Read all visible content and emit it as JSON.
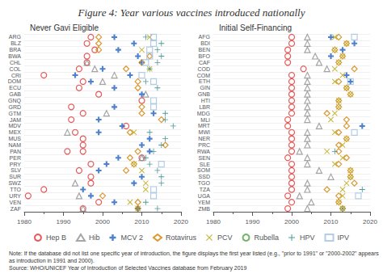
{
  "chart_data": [
    {
      "type": "scatter",
      "title": "Figure 4: Year various vaccines introduced nationally",
      "subtitle": "Never Gavi Eligible",
      "note": "Note: If the database did not list one specific year of introduction, the figure displays the first year listed (e.g., \"prior to 1991\" or \"2000-2002\" appears as introduction in 1991 and 2000).\nSource: WHO/UNICEF Year of Introduction of Selected Vaccines database from February 2019",
      "legend": "bottom",
      "grid": true,
      "xlim": [
        1980,
        2020
      ],
      "xticks": [
        1980,
        1990,
        2000,
        2010,
        2020
      ],
      "categories": [
        "ARG",
        "BLZ",
        "BRA",
        "BWA",
        "CHL",
        "COL",
        "CRI",
        "DOM",
        "ECU",
        "GAB",
        "GNQ",
        "GRD",
        "GTM",
        "JAM",
        "MDV",
        "MEX",
        "MUS",
        "NAM",
        "PAN",
        "PER",
        "PRY",
        "SLV",
        "SUR",
        "SWZ",
        "TTO",
        "URY",
        "VEN",
        "ZAF"
      ],
      "series": [
        {
          "name": "Hep B",
          "color": "#e03030",
          "marker": "circle",
          "x": [
            1997,
            1996,
            1998,
            1996,
            1996,
            1994,
            1985,
            1995,
            1994,
            1999,
            2010,
            1992,
            1995,
            1992,
            2006,
            1993,
            1995,
            1995,
            1991,
            1995,
            2010,
            1997,
            1994,
            1997,
            1997,
            1985,
            1981,
            1999,
            1995
          ],
          "y": [
            "ARG",
            "BLZ",
            "BRA",
            "BWA",
            "CHL",
            "COL",
            "CRI",
            "DOM",
            "ECU",
            "GAB",
            "GNQ",
            "GRD",
            "GTM",
            "JAM",
            "MDV",
            "MEX",
            "MUS",
            "NAM",
            "PAN",
            "PAN",
            "PER",
            "PRY",
            "SLV",
            "SUR",
            "SWZ",
            "TTO",
            "URY",
            "VEN",
            "ZAF"
          ]
        },
        {
          "name": "Hib",
          "color": "#909090",
          "marker": "triangle",
          "x": [
            1996,
            1998,
            2003,
            2000,
            2011,
            2001,
            1991,
            2010,
            1993,
            1994,
            1995
          ],
          "y": [
            "CHL",
            "COL",
            "CRI",
            "DOM",
            "GAB",
            "GTM",
            "MEX",
            "PER",
            "SWZ",
            "URY",
            "ZAF"
          ]
        },
        {
          "name": "MCV 2",
          "color": "#2060c0",
          "marker": "plus_filled",
          "x": [
            2003,
            2008,
            2004,
            2009,
            2010,
            2000,
            1993,
            2007,
            1997,
            2003,
            2010,
            2003,
            2013,
            1999,
            2005,
            1999,
            2012,
            2010,
            2012,
            2004,
            2001,
            1999,
            2010,
            2008,
            1995,
            1997,
            2003,
            2009
          ],
          "y": [
            "ARG",
            "BLZ",
            "BRA",
            "BWA",
            "CHL",
            "COL",
            "CRI",
            "CRI",
            "DOM",
            "ECU",
            "GAB",
            "GRD",
            "GTM",
            "JAM",
            "MDV",
            "MEX",
            "MUS",
            "NAM",
            "PAN",
            "PER",
            "PRY",
            "SLV",
            "SUR",
            "SWZ",
            "TTO",
            "URY",
            "VEN",
            "ZAF"
          ]
        },
        {
          "name": "Rotavirus",
          "color": "#d08000",
          "marker": "diamond",
          "x": [
            1999,
            1999,
            1999,
            2012,
            2010,
            2006,
            2009,
            2009,
            2010,
            2010,
            2015,
            2007,
            2016,
            2009,
            2007,
            2008,
            2006,
            2000,
            2009,
            2009
          ],
          "y": [
            "ARG",
            "BLZ",
            "BRA",
            "BWA",
            "CHL",
            "COL",
            "DOM",
            "ECU",
            "GRD",
            "GTM",
            "JAM",
            "MEX",
            "NAM",
            "PAN",
            "PER",
            "PRY",
            "SLV",
            "URY",
            "VEN",
            "ZAF"
          ]
        },
        {
          "name": "PCV",
          "color": "#b8a000",
          "marker": "x",
          "x": [
            2012,
            2010,
            2012,
            2008,
            2008,
            2010,
            2011,
            2011,
            2007,
            2009
          ],
          "y": [
            "ARG",
            "BRA",
            "COL",
            "MEX",
            "PRY",
            "SLV",
            "SWZ",
            "TTO",
            "VEN",
            "ZAF"
          ]
        },
        {
          "name": "Rubella",
          "color": "#50a040",
          "marker": "circle",
          "x": [],
          "y": []
        },
        {
          "name": "HPV",
          "color": "#208080",
          "marker": "plus",
          "x": [
            2011,
            2015,
            2014,
            2015,
            2014,
            2012,
            2011,
            2014,
            2016,
            2016,
            2018,
            2012,
            2016,
            2015,
            2013,
            2011,
            2012,
            2014,
            2015,
            2015,
            2011,
            2014
          ],
          "y": [
            "ARG",
            "BLZ",
            "BRA",
            "BWA",
            "CHL",
            "COL",
            "DOM",
            "ECU",
            "GTM",
            "JAM",
            "MDV",
            "MEX",
            "MUS",
            "NAM",
            "PAN",
            "PER",
            "PRY",
            "SLV",
            "SUR",
            "SWZ",
            "VEN",
            "ZAF"
          ]
        },
        {
          "name": "IPV",
          "color": "#a0c0e0",
          "marker": "square",
          "x": [
            2013,
            2013,
            2012,
            2012,
            2011,
            2010,
            2013,
            2013,
            2013,
            2015,
            2013,
            2013
          ],
          "y": [
            "ARG",
            "BLZ",
            "BRA",
            "BWA",
            "CHL",
            "CRI",
            "DOM",
            "GNQ",
            "GRD",
            "PRY",
            "TTO",
            "URY"
          ]
        }
      ]
    },
    {
      "type": "scatter",
      "subtitle": "Initial Self-Financing",
      "grid": true,
      "xlim": [
        1980,
        2020
      ],
      "xticks": [
        1980,
        1990,
        2000,
        2010,
        2020
      ],
      "categories": [
        "AFG",
        "BDI",
        "BEN",
        "BFO",
        "CAF",
        "COD",
        "COM",
        "ETH",
        "GIN",
        "GNB",
        "HTI",
        "LBR",
        "MDG",
        "MLI",
        "MRT",
        "MWI",
        "NER",
        "PRC",
        "RWA",
        "SEN",
        "SLE",
        "SOM",
        "SSD",
        "TGO",
        "TZA",
        "UGA",
        "YEM",
        "ZMB"
      ],
      "series": [
        {
          "name": "Hep B",
          "color": "#e03030",
          "marker": "circle",
          "x": [
            2000,
            2000,
            1999,
            1999,
            1999,
            2003,
            2000,
            2000,
            2000,
            2000,
            2000,
            2000,
            2000,
            1999,
            1999,
            2000,
            2000,
            2000,
            2000,
            1999,
            2000,
            2000,
            2000,
            2000,
            2000,
            1999,
            2000,
            1999
          ],
          "y": [
            "AFG",
            "BDI",
            "BEN",
            "BFO",
            "CAF",
            "COD",
            "COM",
            "ETH",
            "GIN",
            "GNB",
            "HTI",
            "LBR",
            "MDG",
            "MLI",
            "MRT",
            "MWI",
            "NER",
            "PRC",
            "RWA",
            "SEN",
            "SLE",
            "SOM",
            "SSD",
            "TGO",
            "TZA",
            "UGA",
            "YEM",
            "ZMB"
          ]
        },
        {
          "name": "Hib",
          "color": "#909090",
          "marker": "triangle",
          "x": [
            2004,
            2004,
            2004,
            2006,
            2007,
            2009,
            2004,
            2004,
            2004,
            2004,
            2004,
            2004,
            2004,
            2004,
            2007,
            2004,
            2004,
            2004,
            2002,
            2004,
            2004,
            2007,
            2010,
            2004,
            2004,
            2002,
            2005,
            2004
          ],
          "y": [
            "AFG",
            "BDI",
            "BEN",
            "BFO",
            "CAF",
            "COD",
            "COM",
            "ETH",
            "GIN",
            "GNB",
            "HTI",
            "LBR",
            "MDG",
            "MLI",
            "MRT",
            "MWI",
            "NER",
            "PRC",
            "RWA",
            "SEN",
            "SLE",
            "SOM",
            "SSD",
            "TGO",
            "TZA",
            "UGA",
            "YEM",
            "ZMB"
          ]
        },
        {
          "name": "MCV 2",
          "color": "#2060c0",
          "marker": "plus_filled",
          "x": [
            2010,
            2016,
            2013,
            2010,
            2014,
            2015,
            2018
          ],
          "y": [
            "AFG",
            "BDI",
            "BEN",
            "BFO",
            "COM",
            "ETH",
            "MRT"
          ]
        },
        {
          "name": "Rotavirus",
          "color": "#d08000",
          "marker": "diamond",
          "x": [
            2012,
            2014,
            2011,
            2013,
            2012,
            2016,
            2012,
            2014,
            2015,
            2012,
            2012,
            2009,
            2014,
            2014,
            2012,
            2014,
            2012,
            2012,
            2014,
            2012,
            2015,
            2015,
            2016,
            2009,
            2012,
            2012,
            2013
          ],
          "y": [
            "AFG",
            "BDI",
            "BEN",
            "BFO",
            "CAF",
            "COD",
            "ETH",
            "GIN",
            "GNB",
            "HTI",
            "LBR",
            "MDG",
            "MLI",
            "MRT",
            "MWI",
            "NER",
            "PRC",
            "RWA",
            "SEN",
            "SLE",
            "SOM",
            "SSD",
            "TGO",
            "TZA",
            "UGA",
            "YEM",
            "ZMB"
          ]
        },
        {
          "name": "PCV",
          "color": "#b8a000",
          "marker": "x",
          "x": [
            2011,
            2014,
            2011,
            2013,
            2012,
            2011,
            2013,
            2011,
            2014,
            2015,
            2012,
            2012,
            2011,
            2010,
            2011,
            2014,
            2013,
            2009,
            2013,
            2011,
            2015,
            2015,
            2014,
            2013,
            2013,
            2012,
            2013
          ],
          "y": [
            "AFG",
            "BDI",
            "BEN",
            "BFO",
            "CAF",
            "COD",
            "COM",
            "ETH",
            "GIN",
            "GNB",
            "HTI",
            "LBR",
            "MDG",
            "MLI",
            "MWI",
            "NER",
            "PRC",
            "RWA",
            "SEN",
            "SLE",
            "SOM",
            "SSD",
            "TGO",
            "TZA",
            "UGA",
            "YEM",
            "ZMB"
          ]
        },
        {
          "name": "Rubella",
          "color": "#50a040",
          "marker": "circle",
          "x": [],
          "y": []
        },
        {
          "name": "HPV",
          "color": "#208080",
          "marker": "plus",
          "x": [
            2011,
            2018,
            2013
          ],
          "y": [
            "RWA",
            "TZA",
            "ZMB"
          ]
        },
        {
          "name": "IPV",
          "color": "#a0c0e0",
          "marker": "square",
          "x": [
            2016,
            2015,
            2016,
            2017
          ],
          "y": [
            "AFG",
            "ETH",
            "MWI",
            "UGA"
          ]
        }
      ]
    }
  ]
}
